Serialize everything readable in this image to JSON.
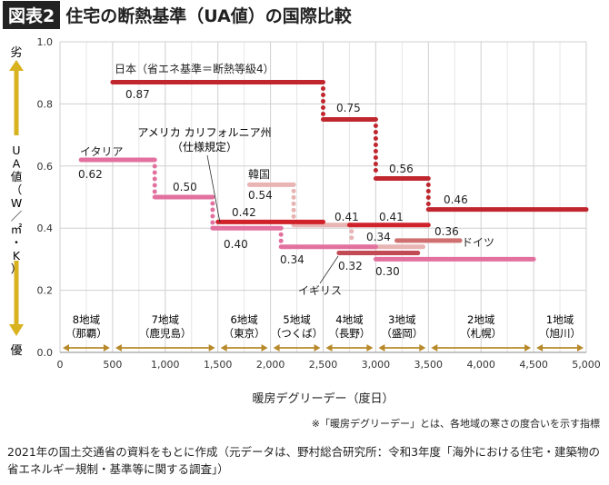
{
  "header": {
    "badge": "図表2",
    "title": "住宅の断熱基準（UA値）の国際比較"
  },
  "y_axis_side": {
    "top_label": "劣",
    "bottom_label": "優",
    "unit_label": "UA値（W／㎡・K）",
    "arrow_color": "#d9b21f"
  },
  "chart_data": {
    "type": "line",
    "step": true,
    "title": "",
    "xlabel": "暖房デグリーデー（度日）",
    "ylabel": "UA値（W／㎡・K）",
    "xlim": [
      0,
      5000
    ],
    "ylim": [
      0,
      1.0
    ],
    "grid": true,
    "x_ticks": [
      "0",
      "500",
      "1,000",
      "1,500",
      "2,000",
      "2,500",
      "3,000",
      "3,500",
      "4,000",
      "4,500",
      "5,000"
    ],
    "x_tick_values": [
      0,
      500,
      1000,
      1500,
      2000,
      2500,
      3000,
      3500,
      4000,
      4500,
      5000
    ],
    "y_ticks": [
      "0.0",
      "0.2",
      "0.4",
      "0.6",
      "0.8",
      "1.0"
    ],
    "y_tick_values": [
      0,
      0.2,
      0.4,
      0.6,
      0.8,
      1.0
    ],
    "series": [
      {
        "name": "日本（省エネ基準＝断熱等級4）",
        "color": "#c0262d",
        "segments": [
          [
            500,
            2500,
            0.87
          ],
          [
            2500,
            3000,
            0.75
          ],
          [
            3000,
            3500,
            0.56
          ],
          [
            3500,
            5000,
            0.46
          ]
        ],
        "labels": [
          "0.87",
          "0.75",
          "0.56",
          "0.46"
        ]
      },
      {
        "name": "イタリア",
        "color": "#e2719f",
        "segments": [
          [
            200,
            900,
            0.62
          ],
          [
            900,
            1450,
            0.5
          ],
          [
            1450,
            2100,
            0.4
          ],
          [
            2100,
            3000,
            0.34
          ],
          [
            3000,
            4500,
            0.3
          ]
        ],
        "labels": [
          "0.62",
          "0.50",
          "0.40",
          "0.34",
          "0.30"
        ]
      },
      {
        "name": "アメリカ カリフォルニア州（仕様規定）",
        "color": "#d0222a",
        "segments": [
          [
            1500,
            2500,
            0.42
          ],
          [
            2750,
            3500,
            0.41
          ]
        ],
        "labels": [
          "0.42",
          "0.41"
        ]
      },
      {
        "name": "韓国",
        "color": "#e8b4b4",
        "segments": [
          [
            1800,
            2220,
            0.54
          ],
          [
            2220,
            2770,
            0.41
          ],
          [
            2770,
            3450,
            0.34
          ]
        ],
        "labels": [
          "0.54",
          "0.41",
          "0.34"
        ]
      },
      {
        "name": "ドイツ",
        "color": "#cf6f6f",
        "segments": [
          [
            3200,
            3800,
            0.36
          ]
        ],
        "labels": [
          "0.36"
        ]
      },
      {
        "name": "イギリス",
        "color": "#c24a55",
        "segments": [
          [
            2650,
            3400,
            0.32
          ]
        ],
        "labels": [
          "0.32"
        ]
      }
    ],
    "regions": [
      {
        "name": "8地域",
        "city": "（那覇）",
        "range": [
          0,
          500
        ]
      },
      {
        "name": "7地域",
        "city": "（鹿児島）",
        "range": [
          500,
          1500
        ]
      },
      {
        "name": "6地域",
        "city": "（東京）",
        "range": [
          1500,
          2000
        ]
      },
      {
        "name": "5地域",
        "city": "（つくば）",
        "range": [
          2000,
          2500
        ]
      },
      {
        "name": "4地域",
        "city": "（長野）",
        "range": [
          2500,
          3000
        ]
      },
      {
        "name": "3地域",
        "city": "（盛岡）",
        "range": [
          3000,
          3500
        ]
      },
      {
        "name": "2地域",
        "city": "（札幌）",
        "range": [
          3500,
          4500
        ]
      },
      {
        "name": "1地域",
        "city": "（旭川）",
        "range": [
          4500,
          5000
        ]
      }
    ]
  },
  "footer": {
    "note": "※「暖房デグリーデー」とは、各地域の寒さの度合いを示す指標",
    "source": "2021年の国土交通省の資料をもとに作成（元データは、野村総合研究所：令和3年度「海外における住宅・建築物の省エネルギー規制・基準等に関する調査」）"
  }
}
